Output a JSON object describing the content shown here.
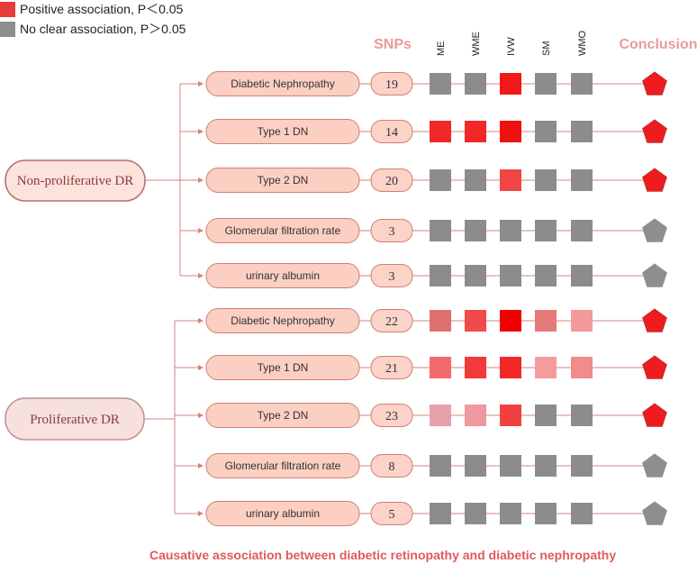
{
  "legend": [
    {
      "label": "Positive association,  P＜0.05",
      "color": "#e53c3c"
    },
    {
      "label": "No clear association, P＞0.05",
      "color": "#8e8e8e"
    }
  ],
  "headers": {
    "snps": "SNPs",
    "conclusion": "Conclusion"
  },
  "methods": [
    "ME",
    "WME",
    "IVW",
    "SM",
    "WMO"
  ],
  "groups": [
    {
      "name": "Non-proliferative DR",
      "rows": [
        {
          "outcome": "Diabetic Nephropathy",
          "snps": "19",
          "cells": [
            "#8c8c8c",
            "#8c8c8c",
            "#f01818",
            "#8c8c8c",
            "#8c8c8c"
          ],
          "conclusion": "positive"
        },
        {
          "outcome": "Type 1 DN",
          "snps": "14",
          "cells": [
            "#f02828",
            "#f02828",
            "#f01010",
            "#8c8c8c",
            "#8c8c8c"
          ],
          "conclusion": "positive"
        },
        {
          "outcome": "Type 2 DN",
          "snps": "20",
          "cells": [
            "#8c8c8c",
            "#8c8c8c",
            "#f24646",
            "#8c8c8c",
            "#8c8c8c"
          ],
          "conclusion": "positive"
        },
        {
          "outcome": "Glomerular filtration rate",
          "snps": "3",
          "cells": [
            "#8c8c8c",
            "#8c8c8c",
            "#8c8c8c",
            "#8c8c8c",
            "#8c8c8c"
          ],
          "conclusion": "none"
        },
        {
          "outcome": "urinary albumin",
          "snps": "3",
          "cells": [
            "#8c8c8c",
            "#8c8c8c",
            "#8c8c8c",
            "#8c8c8c",
            "#8c8c8c"
          ],
          "conclusion": "none"
        }
      ]
    },
    {
      "name": "Proliferative DR",
      "rows": [
        {
          "outcome": "Diabetic Nephropathy",
          "snps": "22",
          "cells": [
            "#e07070",
            "#f24a4a",
            "#f00000",
            "#e47a7a",
            "#f39a9a"
          ],
          "conclusion": "positive"
        },
        {
          "outcome": "Type 1 DN",
          "snps": "21",
          "cells": [
            "#f46a6a",
            "#f23a3a",
            "#f02828",
            "#f39c9c",
            "#f08c8c"
          ],
          "conclusion": "positive"
        },
        {
          "outcome": "Type 2 DN",
          "snps": "23",
          "cells": [
            "#e6a0a8",
            "#f098a0",
            "#f24040",
            "#8c8c8c",
            "#8c8c8c"
          ],
          "conclusion": "positive"
        },
        {
          "outcome": "Glomerular filtration rate",
          "snps": "8",
          "cells": [
            "#8c8c8c",
            "#8c8c8c",
            "#8c8c8c",
            "#8c8c8c",
            "#8c8c8c"
          ],
          "conclusion": "none"
        },
        {
          "outcome": "urinary albumin",
          "snps": "5",
          "cells": [
            "#8c8c8c",
            "#8c8c8c",
            "#8c8c8c",
            "#8c8c8c",
            "#8c8c8c"
          ],
          "conclusion": "none"
        }
      ]
    }
  ],
  "conclusion_colors": {
    "positive": "#ee1c1c",
    "positive_light": "#f24a4a",
    "none": "#8e8e8e"
  },
  "footer": "Causative association between diabetic retinopathy and  diabetic nephropathy"
}
